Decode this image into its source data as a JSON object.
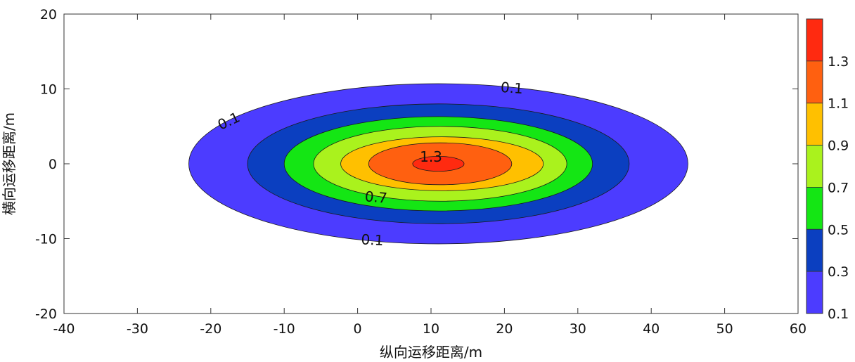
{
  "chart_data": {
    "type": "contour",
    "title": "",
    "xlabel": "纵向运移距离/m",
    "ylabel": "横向运移距离/m",
    "xlim": [
      -40,
      60
    ],
    "ylim": [
      -20,
      20
    ],
    "x_ticks": [
      "-40",
      "-30",
      "-20",
      "-10",
      "0",
      "10",
      "20",
      "30",
      "40",
      "50",
      "60"
    ],
    "y_ticks": [
      "20",
      "10",
      "0",
      "-10",
      "-20"
    ],
    "plume_center": [
      11,
      0
    ],
    "contour_levels": [
      {
        "level": 0.1,
        "color": "#4c3cff",
        "x_range": [
          -23,
          45
        ],
        "y_range": [
          -10.7,
          10.7
        ]
      },
      {
        "level": 0.3,
        "color": "#0b3fc0",
        "x_range": [
          -15,
          37
        ],
        "y_range": [
          -8.0,
          8.0
        ]
      },
      {
        "level": 0.5,
        "color": "#14e614",
        "x_range": [
          -10,
          32
        ],
        "y_range": [
          -6.3,
          6.3
        ]
      },
      {
        "level": 0.7,
        "color": "#aaf21d",
        "x_range": [
          -6,
          28.5
        ],
        "y_range": [
          -5.0,
          5.0
        ]
      },
      {
        "level": 0.9,
        "color": "#ffc000",
        "x_range": [
          -2.3,
          25.3
        ],
        "y_range": [
          -3.6,
          3.6
        ]
      },
      {
        "level": 1.1,
        "color": "#ff6010",
        "x_range": [
          1.5,
          21
        ],
        "y_range": [
          -2.8,
          2.8
        ]
      },
      {
        "level": 1.3,
        "color": "#ff2a10",
        "x_range": [
          7.5,
          14.5
        ],
        "y_range": [
          -1.0,
          1.0
        ]
      }
    ],
    "contour_labels": [
      {
        "text": "0.1",
        "x": -17.5,
        "y": 5.6,
        "angle": -25
      },
      {
        "text": "0.1",
        "x": 21,
        "y": 10,
        "angle": 4
      },
      {
        "text": "0.1",
        "x": 2,
        "y": -10.3,
        "angle": 3
      },
      {
        "text": "0.7",
        "x": 2.5,
        "y": -4.6,
        "angle": 5
      },
      {
        "text": "1.3",
        "x": 10,
        "y": 0.8,
        "angle": 0
      }
    ],
    "colorbar": {
      "labels": [
        "1.3",
        "1.1",
        "0.9",
        "0.7",
        "0.5",
        "0.3",
        "0.1"
      ],
      "bands": [
        {
          "from": 1.3,
          "to": 1.5,
          "color": "#ff2a10"
        },
        {
          "from": 1.1,
          "to": 1.3,
          "color": "#ff6010"
        },
        {
          "from": 0.9,
          "to": 1.1,
          "color": "#ffc000"
        },
        {
          "from": 0.7,
          "to": 0.9,
          "color": "#aaf21d"
        },
        {
          "from": 0.5,
          "to": 0.7,
          "color": "#14e614"
        },
        {
          "from": 0.3,
          "to": 0.5,
          "color": "#0b3fc0"
        },
        {
          "from": 0.1,
          "to": 0.3,
          "color": "#4c3cff"
        }
      ]
    }
  }
}
